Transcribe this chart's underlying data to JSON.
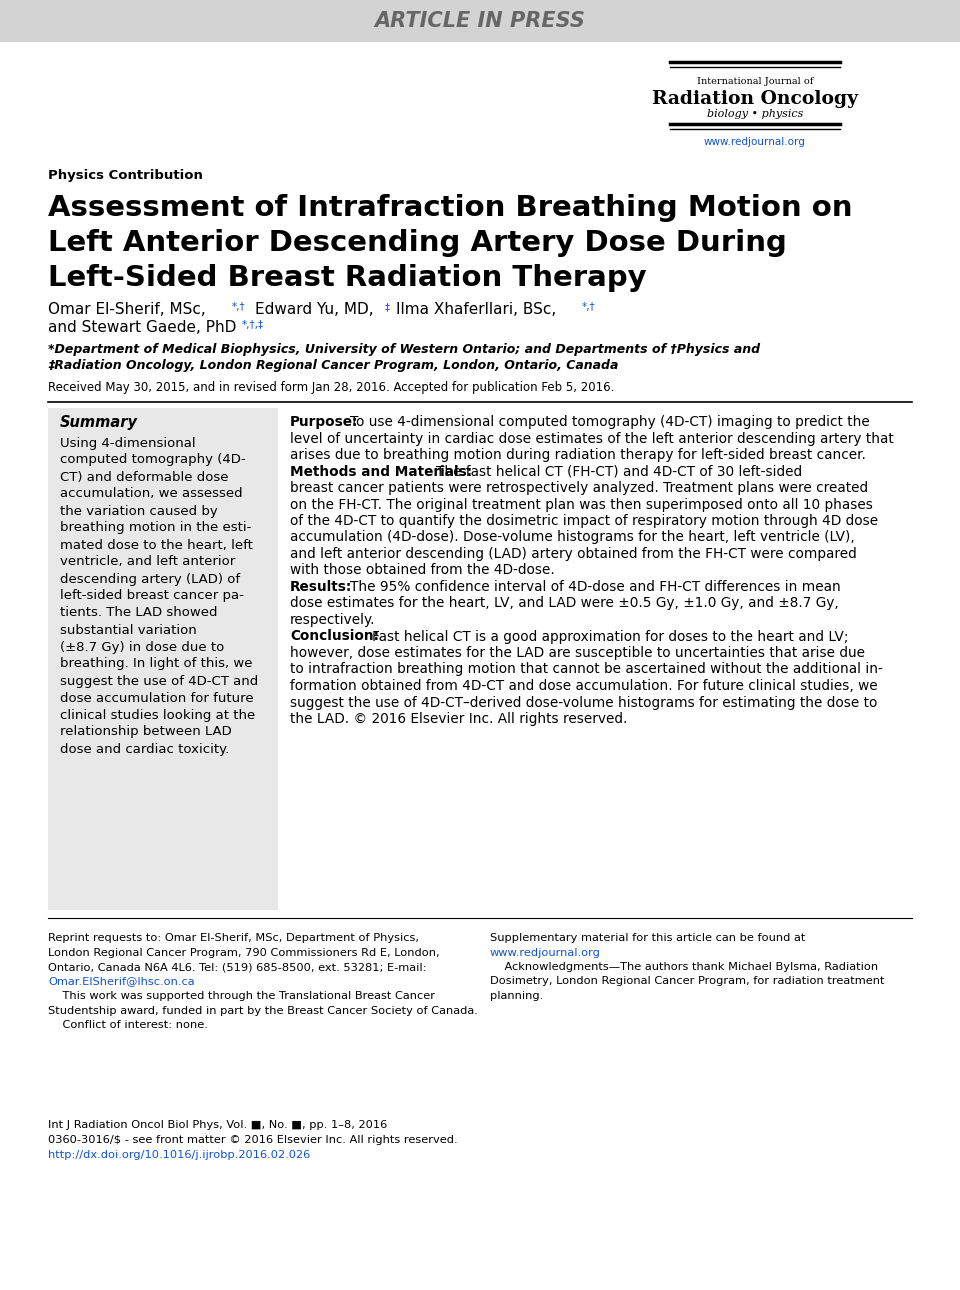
{
  "bg_color": "#ffffff",
  "summary_bg": "#e8e8e8",
  "banner_bg": "#d3d3d3",
  "banner_text": "ARTICLE IN PRESS",
  "journal_line1": "International Journal of",
  "journal_line2": "Radiation Oncology",
  "journal_line3": "biology • physics",
  "journal_url": "www.redjournal.org",
  "link_color": "#1155cc",
  "section_label": "Physics Contribution",
  "title1": "Assessment of Intrafraction Breathing Motion on",
  "title2": "Left Anterior Descending Artery Dose During",
  "title3": "Left-Sided Breast Radiation Therapy",
  "affil_line1": "*Department of Medical Biophysics, University of Western Ontario; and Departments of †Physics and",
  "affil_line2": "‡Radiation Oncology, London Regional Cancer Program, London, Ontario, Canada",
  "received": "Received May 30, 2015, and in revised form Jan 28, 2016. Accepted for publication Feb 5, 2016.",
  "summary_title": "Summary",
  "summary_lines": [
    "Using 4-dimensional",
    "computed tomography (4D-",
    "CT) and deformable dose",
    "accumulation, we assessed",
    "the variation caused by",
    "breathing motion in the esti-",
    "mated dose to the heart, left",
    "ventricle, and left anterior",
    "descending artery (LAD) of",
    "left-sided breast cancer pa-",
    "tients. The LAD showed",
    "substantial variation",
    "(±8.7 Gy) in dose due to",
    "breathing. In light of this, we",
    "suggest the use of 4D-CT and",
    "dose accumulation for future",
    "clinical studies looking at the",
    "relationship between LAD",
    "dose and cardiac toxicity."
  ],
  "purpose_label": "Purpose:",
  "purpose_lines": [
    "To use 4-dimensional computed tomography (4D-CT) imaging to predict the",
    "level of uncertainty in cardiac dose estimates of the left anterior descending artery that",
    "arises due to breathing motion during radiation therapy for left-sided breast cancer."
  ],
  "methods_label": "Methods and Materials:",
  "methods_lines": [
    "The fast helical CT (FH-CT) and 4D-CT of 30 left-sided",
    "breast cancer patients were retrospectively analyzed. Treatment plans were created",
    "on the FH-CT. The original treatment plan was then superimposed onto all 10 phases",
    "of the 4D-CT to quantify the dosimetric impact of respiratory motion through 4D dose",
    "accumulation (4D-dose). Dose-volume histograms for the heart, left ventricle (LV),",
    "and left anterior descending (LAD) artery obtained from the FH-CT were compared",
    "with those obtained from the 4D-dose."
  ],
  "results_label": "Results:",
  "results_lines": [
    "The 95% confidence interval of 4D-dose and FH-CT differences in mean",
    "dose estimates for the heart, LV, and LAD were ±0.5 Gy, ±1.0 Gy, and ±8.7 Gy,",
    "respectively."
  ],
  "conclusion_label": "Conclusion:",
  "conclusion_lines": [
    "Fast helical CT is a good approximation for doses to the heart and LV;",
    "however, dose estimates for the LAD are susceptible to uncertainties that arise due",
    "to intrafraction breathing motion that cannot be ascertained without the additional in-",
    "formation obtained from 4D-CT and dose accumulation. For future clinical studies, we",
    "suggest the use of 4D-CT–derived dose-volume histograms for estimating the dose to",
    "the LAD. © 2016 Elsevier Inc. All rights reserved."
  ],
  "footer_left1": "Reprint requests to: Omar El-Sherif, MSc, Department of Physics,",
  "footer_left2": "London Regional Cancer Program, 790 Commissioners Rd E, London,",
  "footer_left3": "Ontario, Canada N6A 4L6. Tel: (519) 685-8500, ext. 53281; E-mail:",
  "footer_email": "Omar.ElSherif@lhsc.on.ca",
  "footer_left5": "    This work was supported through the Translational Breast Cancer",
  "footer_left6": "Studentship award, funded in part by the Breast Cancer Society of Canada.",
  "footer_left7": "    Conflict of interest: none.",
  "footer_right1": "Supplementary material for this article can be found at",
  "footer_right_url": "www.redjournal.org",
  "footer_right3": "    Acknowledgments—The authors thank Michael Bylsma, Radiation",
  "footer_right4": "Dosimetry, London Regional Cancer Program, for radiation treatment",
  "footer_right5": "planning.",
  "cite1": "Int J Radiation Oncol Biol Phys, Vol. ■, No. ■, pp. 1–8, 2016",
  "cite2": "0360-3016/$ - see front matter © 2016 Elsevier Inc. All rights reserved.",
  "cite3": "http://dx.doi.org/10.1016/j.ijrobp.2016.02.026"
}
